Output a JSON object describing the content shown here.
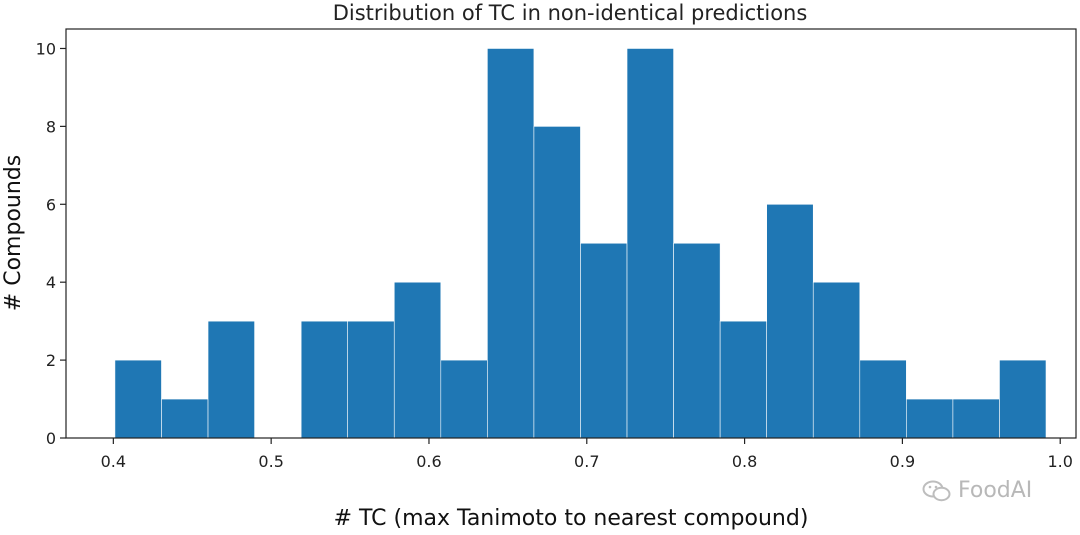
{
  "chart_data": {
    "type": "bar",
    "title": "Distribution of TC in non-identical predictions",
    "xlabel": "# TC (max Tanimoto to nearest compound)",
    "ylabel": "# Compounds",
    "xlim": [
      0.37,
      1.01
    ],
    "ylim": [
      0,
      10.5
    ],
    "xticks": [
      "0.4",
      "0.5",
      "0.6",
      "0.7",
      "0.8",
      "0.9",
      "1.0"
    ],
    "yticks": [
      "0",
      "2",
      "4",
      "6",
      "8",
      "10"
    ],
    "bin_width": 0.0295,
    "bins_start": [
      0.401,
      0.4305,
      0.46,
      0.4895,
      0.519,
      0.5485,
      0.578,
      0.6075,
      0.637,
      0.6665,
      0.696,
      0.7255,
      0.755,
      0.7845,
      0.814,
      0.8435,
      0.873,
      0.9025,
      0.932,
      0.9615
    ],
    "values": [
      2,
      1,
      3,
      0,
      3,
      3,
      4,
      2,
      10,
      8,
      5,
      10,
      5,
      3,
      6,
      4,
      2,
      1,
      1,
      2
    ],
    "bar_color": "#1f77b4",
    "grid": false
  },
  "watermark": {
    "text": "FoodAI",
    "icon": "wechat-icon"
  }
}
